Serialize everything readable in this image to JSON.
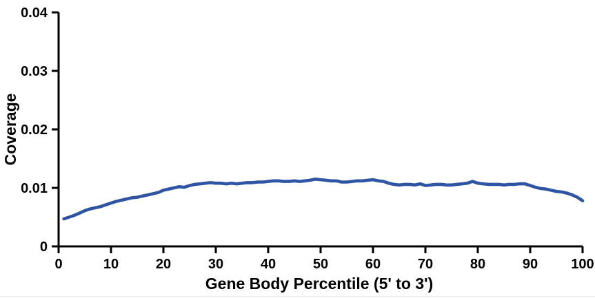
{
  "chart_data": {
    "type": "line",
    "title": "",
    "xlabel": "Gene Body Percentile  (5' to 3')",
    "ylabel": "Coverage",
    "xlim": [
      0,
      100
    ],
    "ylim": [
      0,
      0.04
    ],
    "grid": false,
    "legend": "none",
    "axis_color": "#000000",
    "background_color": "#ffffff",
    "x_ticks": {
      "values": [
        0,
        10,
        20,
        30,
        40,
        50,
        60,
        70,
        80,
        90,
        100
      ],
      "labels": [
        "0",
        "10",
        "20",
        "30",
        "40",
        "50",
        "60",
        "70",
        "80",
        "90",
        "100"
      ]
    },
    "y_ticks": {
      "values": [
        0,
        0.01,
        0.02,
        0.03,
        0.04
      ],
      "labels": [
        "0",
        "0.01",
        "0.02",
        "0.03",
        "0.04"
      ]
    },
    "x": [
      1,
      2,
      3,
      4,
      5,
      6,
      7,
      8,
      9,
      10,
      11,
      12,
      13,
      14,
      15,
      16,
      17,
      18,
      19,
      20,
      21,
      22,
      23,
      24,
      25,
      26,
      27,
      28,
      29,
      30,
      31,
      32,
      33,
      34,
      35,
      36,
      37,
      38,
      39,
      40,
      41,
      42,
      43,
      44,
      45,
      46,
      47,
      48,
      49,
      50,
      51,
      52,
      53,
      54,
      55,
      56,
      57,
      58,
      59,
      60,
      61,
      62,
      63,
      64,
      65,
      66,
      67,
      68,
      69,
      70,
      71,
      72,
      73,
      74,
      75,
      76,
      77,
      78,
      79,
      80,
      81,
      82,
      83,
      84,
      85,
      86,
      87,
      88,
      89,
      90,
      91,
      92,
      93,
      94,
      95,
      96,
      97,
      98,
      99,
      100
    ],
    "series": [
      {
        "name": "Coverage",
        "color": "#2d55a3",
        "line_width": 4.6,
        "values": [
          0.0047,
          0.005,
          0.0053,
          0.0057,
          0.0061,
          0.0064,
          0.0066,
          0.0068,
          0.0071,
          0.0074,
          0.0077,
          0.0079,
          0.0081,
          0.0083,
          0.0084,
          0.0086,
          0.0088,
          0.009,
          0.0092,
          0.0096,
          0.0098,
          0.01,
          0.0102,
          0.0101,
          0.0104,
          0.0106,
          0.0107,
          0.0108,
          0.0109,
          0.0108,
          0.0108,
          0.0107,
          0.0108,
          0.0107,
          0.0108,
          0.0109,
          0.0109,
          0.011,
          0.011,
          0.0111,
          0.0112,
          0.0112,
          0.0111,
          0.0111,
          0.0112,
          0.0111,
          0.0112,
          0.0113,
          0.0115,
          0.0114,
          0.0113,
          0.0112,
          0.0112,
          0.011,
          0.011,
          0.0111,
          0.0112,
          0.0112,
          0.0113,
          0.0114,
          0.0112,
          0.0111,
          0.0108,
          0.0106,
          0.0105,
          0.0106,
          0.0106,
          0.0105,
          0.0107,
          0.0104,
          0.0105,
          0.0106,
          0.0106,
          0.0105,
          0.0105,
          0.0106,
          0.0107,
          0.0108,
          0.0111,
          0.0108,
          0.0107,
          0.0106,
          0.0106,
          0.0106,
          0.0105,
          0.0106,
          0.0106,
          0.0107,
          0.0107,
          0.0104,
          0.0101,
          0.0099,
          0.0098,
          0.0096,
          0.0094,
          0.0093,
          0.0091,
          0.0088,
          0.0084,
          0.0078
        ]
      }
    ]
  }
}
